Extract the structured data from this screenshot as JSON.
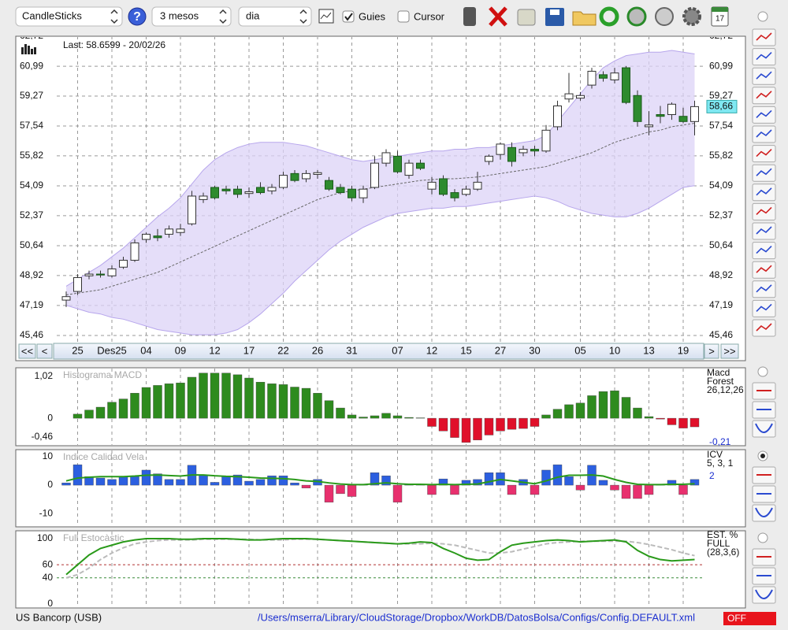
{
  "toolbar": {
    "chart_type": "CandleSticks",
    "help": "?",
    "period": "3 mesos",
    "interval": "dia",
    "guides": "Guies",
    "guides_checked": true,
    "cursor": "Cursor",
    "cursor_checked": false,
    "calendar_day": "17"
  },
  "nav": [
    "<<",
    "<",
    ">",
    ">>"
  ],
  "chart_data": [
    {
      "type": "candlestick",
      "title": "Last: 58.6599 - 20/02/26",
      "categories": [
        null,
        "25",
        null,
        null,
        "Des25",
        null,
        null,
        "04",
        null,
        null,
        "09",
        null,
        null,
        "12",
        null,
        null,
        "17",
        null,
        null,
        "22",
        null,
        null,
        "26",
        null,
        null,
        "31",
        null,
        null,
        null,
        "07",
        null,
        null,
        "12",
        null,
        null,
        "15",
        null,
        null,
        "27",
        null,
        null,
        "30",
        null,
        null,
        null,
        "05",
        null,
        null,
        "10",
        null,
        null,
        "13",
        null,
        null,
        "19",
        null
      ],
      "open": [
        47.5,
        48.0,
        48.9,
        49.0,
        48.9,
        49.4,
        49.8,
        51.0,
        51.2,
        51.3,
        51.4,
        51.9,
        53.3,
        54.0,
        53.9,
        53.9,
        53.65,
        54.0,
        53.8,
        54.0,
        54.8,
        54.5,
        54.75,
        54.4,
        54.0,
        53.9,
        53.4,
        54.0,
        55.4,
        55.8,
        54.7,
        55.4,
        53.9,
        54.5,
        53.7,
        53.6,
        53.9,
        55.5,
        55.9,
        56.3,
        56.0,
        56.2,
        56.1,
        57.5,
        59.1,
        59.15,
        59.9,
        60.5,
        60.2,
        60.9,
        59.3,
        57.5,
        58.2,
        58.2,
        58.1,
        57.8
      ],
      "high": [
        48.0,
        49.0,
        49.2,
        49.2,
        49.5,
        50.0,
        51.0,
        51.4,
        51.6,
        51.8,
        51.9,
        53.8,
        53.7,
        54.1,
        54.1,
        54.1,
        54.0,
        54.3,
        54.2,
        54.9,
        55.0,
        55.0,
        55.0,
        54.6,
        54.2,
        54.1,
        54.1,
        55.8,
        56.2,
        56.1,
        55.6,
        55.6,
        54.6,
        54.7,
        53.9,
        54.1,
        54.9,
        55.9,
        56.6,
        56.6,
        56.4,
        56.4,
        57.6,
        59.0,
        60.6,
        59.5,
        60.9,
        60.7,
        60.9,
        61.0,
        59.6,
        58.4,
        58.7,
        58.9,
        58.6,
        59.0
      ],
      "low": [
        47.1,
        47.8,
        48.7,
        48.8,
        48.8,
        49.3,
        49.7,
        50.8,
        50.9,
        51.1,
        51.2,
        51.8,
        53.1,
        53.3,
        53.6,
        53.4,
        53.4,
        53.6,
        53.6,
        53.9,
        54.3,
        54.3,
        54.5,
        53.8,
        53.6,
        53.2,
        53.1,
        53.9,
        55.2,
        54.8,
        54.5,
        55.0,
        53.6,
        53.5,
        53.2,
        53.5,
        53.8,
        55.3,
        55.6,
        55.2,
        55.8,
        55.8,
        56.0,
        57.3,
        58.9,
        59.0,
        59.7,
        60.1,
        60.0,
        58.8,
        57.5,
        57.0,
        57.7,
        57.9,
        57.7,
        57.0
      ],
      "close": [
        47.7,
        48.8,
        49.0,
        48.95,
        49.3,
        49.8,
        50.8,
        51.3,
        51.1,
        51.6,
        51.6,
        53.5,
        53.5,
        53.4,
        53.8,
        53.6,
        53.75,
        53.7,
        54.0,
        54.7,
        54.4,
        54.8,
        54.85,
        53.9,
        53.7,
        53.4,
        53.9,
        55.4,
        56.0,
        54.9,
        55.4,
        55.1,
        54.3,
        53.6,
        53.4,
        53.9,
        54.3,
        55.8,
        56.5,
        55.5,
        56.2,
        56.1,
        57.3,
        58.7,
        59.4,
        59.3,
        60.7,
        60.3,
        60.6,
        58.9,
        57.8,
        57.6,
        58.1,
        58.8,
        57.8,
        58.66
      ],
      "close_labels": [
        null,
        null,
        null,
        null,
        null,
        null,
        null,
        null,
        null,
        null,
        null,
        null,
        null,
        null,
        null,
        null,
        null,
        null,
        null,
        null,
        null,
        null,
        null,
        null,
        null,
        null,
        null,
        null,
        null,
        null,
        null,
        null,
        null,
        null,
        null,
        null,
        null,
        null,
        null,
        null,
        null,
        null,
        null,
        null,
        null,
        null,
        null,
        null,
        null,
        null,
        null,
        null,
        null,
        null,
        null,
        "58,66"
      ],
      "bands": {
        "upper": [
          48.3,
          48.7,
          49.1,
          49.5,
          50.0,
          50.5,
          51.1,
          51.7,
          52.3,
          52.8,
          53.4,
          54.2,
          55.0,
          55.6,
          56.0,
          56.3,
          56.5,
          56.6,
          56.6,
          56.6,
          56.5,
          56.4,
          56.2,
          56.0,
          55.8,
          55.6,
          55.5,
          55.6,
          55.7,
          55.8,
          55.9,
          56.0,
          56.1,
          56.1,
          56.2,
          56.2,
          56.3,
          56.3,
          56.4,
          56.5,
          56.6,
          56.7,
          57.0,
          57.8,
          58.6,
          59.4,
          60.2,
          60.9,
          61.3,
          61.6,
          61.7,
          61.8,
          61.8,
          61.9,
          61.8,
          61.7
        ],
        "middle": [
          47.8,
          47.9,
          48.0,
          48.1,
          48.3,
          48.5,
          48.7,
          48.9,
          49.1,
          49.4,
          49.7,
          50.0,
          50.3,
          50.6,
          50.9,
          51.2,
          51.5,
          51.8,
          52.1,
          52.4,
          52.7,
          53.0,
          53.3,
          53.5,
          53.7,
          53.8,
          53.9,
          54.0,
          54.1,
          54.2,
          54.3,
          54.4,
          54.45,
          54.5,
          54.5,
          54.55,
          54.6,
          54.7,
          54.8,
          54.9,
          55.0,
          55.1,
          55.2,
          55.4,
          55.6,
          55.8,
          56.0,
          56.3,
          56.6,
          56.8,
          57.0,
          57.2,
          57.3,
          57.5,
          57.6,
          57.7
        ],
        "lower": [
          47.2,
          47.0,
          46.8,
          46.7,
          46.5,
          46.4,
          46.2,
          46.0,
          45.8,
          45.7,
          45.6,
          45.5,
          45.5,
          45.5,
          45.6,
          45.8,
          46.2,
          46.7,
          47.3,
          47.9,
          48.6,
          49.2,
          49.8,
          50.4,
          50.9,
          51.3,
          51.7,
          52.0,
          52.3,
          52.5,
          52.6,
          52.7,
          52.8,
          52.8,
          52.9,
          52.9,
          53.0,
          53.1,
          53.2,
          53.3,
          53.4,
          53.5,
          53.4,
          53.2,
          52.9,
          52.7,
          52.5,
          52.4,
          52.3,
          52.3,
          52.5,
          52.8,
          53.2,
          53.6,
          54.0,
          54.1
        ]
      },
      "ylim": [
        45.46,
        62.72
      ],
      "yticks": [
        {
          "value": 45.46,
          "label": "45,46"
        },
        {
          "value": 47.19,
          "label": "47,19"
        },
        {
          "value": 48.92,
          "label": "48,92"
        },
        {
          "value": 50.64,
          "label": "50,64"
        },
        {
          "value": 52.37,
          "label": "52,37"
        },
        {
          "value": 54.09,
          "label": "54,09"
        },
        {
          "value": 55.82,
          "label": "55,82"
        },
        {
          "value": 57.54,
          "label": "57,54"
        },
        {
          "value": 59.27,
          "label": "59,27"
        },
        {
          "value": 60.99,
          "label": "60,99"
        },
        {
          "value": 62.72,
          "label": "62,72"
        }
      ],
      "grid": true,
      "colors": {
        "up": "#ffffff",
        "down": "#2e8b2e",
        "band": "#dcd3f7",
        "last": "#7fe8f2"
      }
    },
    {
      "type": "bar",
      "title": "Histograma MACD",
      "side_labels": [
        "Macd",
        "Forest",
        "26,12,26"
      ],
      "values": [
        null,
        0.1,
        0.2,
        0.27,
        0.39,
        0.47,
        0.61,
        0.75,
        0.8,
        0.84,
        0.86,
        1.0,
        1.1,
        1.1,
        1.1,
        1.06,
        0.98,
        0.88,
        0.84,
        0.82,
        0.76,
        0.73,
        0.61,
        0.43,
        0.25,
        0.08,
        0.03,
        0.06,
        0.12,
        0.06,
        0.02,
        0.01,
        -0.2,
        -0.31,
        -0.47,
        -0.59,
        -0.53,
        -0.41,
        -0.31,
        -0.27,
        -0.25,
        -0.2,
        0.08,
        0.22,
        0.33,
        0.37,
        0.55,
        0.65,
        0.67,
        0.51,
        0.25,
        0.04,
        -0.02,
        -0.16,
        -0.24,
        -0.21
      ],
      "value_labels": [
        null,
        null,
        null,
        null,
        null,
        null,
        null,
        null,
        null,
        null,
        null,
        null,
        null,
        null,
        null,
        null,
        null,
        null,
        null,
        null,
        null,
        null,
        null,
        null,
        null,
        null,
        null,
        null,
        null,
        null,
        null,
        null,
        null,
        null,
        null,
        null,
        null,
        null,
        null,
        null,
        null,
        null,
        null,
        null,
        null,
        null,
        null,
        null,
        null,
        null,
        null,
        null,
        null,
        null,
        null,
        "-0,21"
      ],
      "ylim": [
        -0.67,
        1.23
      ],
      "yticks": [
        {
          "value": -0.46,
          "label": "-0,46"
        },
        0,
        {
          "value": 1.02,
          "label": "1,02"
        }
      ],
      "colors": {
        "positive": "#2e8b1e",
        "negative": "#e0102a"
      }
    },
    {
      "type": "bar",
      "title": "Indice Calidad Vela",
      "side_labels": [
        "ICV",
        "5, 3, 1"
      ],
      "values": [
        0.8,
        7.2,
        3,
        2.5,
        2,
        3,
        3,
        5.3,
        4,
        2,
        2,
        7,
        3.6,
        1,
        3.3,
        3.6,
        1.4,
        2,
        3.3,
        3.3,
        0.8,
        -1,
        2,
        -6,
        -3,
        -4,
        0.3,
        4.4,
        3.3,
        -6,
        0.3,
        0.3,
        -3.3,
        2.2,
        -3.3,
        1.7,
        2,
        4.4,
        4.4,
        -3.3,
        2,
        -3.3,
        5.3,
        7.2,
        3,
        -1.7,
        7,
        1.7,
        -1.7,
        -4.7,
        -4.7,
        -3.3,
        0.2,
        1.7,
        -3.3,
        2
      ],
      "line": {
        "color": "#2a9a1a",
        "values": [
          1.5,
          2.5,
          2.8,
          3,
          3,
          3,
          3.2,
          3.5,
          3.6,
          3.4,
          3.2,
          3.6,
          3.6,
          3.3,
          3.1,
          3,
          2.8,
          2.5,
          2.4,
          2.3,
          2.0,
          1.5,
          1.3,
          0.8,
          0.4,
          0.2,
          0.2,
          0.5,
          0.8,
          0.5,
          0.3,
          0.3,
          0.2,
          0.3,
          0.2,
          0.3,
          0.4,
          1.2,
          2.0,
          1.5,
          1.0,
          0.5,
          1.5,
          2.8,
          3.5,
          3.5,
          3.6,
          3.2,
          2.0,
          1.0,
          0.3,
          0.2,
          0.2,
          0.3,
          0.3,
          0.5
        ]
      },
      "ylim": [
        -14.4,
        12.5
      ],
      "yticks": [
        -10,
        0,
        10
      ],
      "colors": {
        "positive": "#2c5fe0",
        "negative": "#e8306e"
      }
    },
    {
      "type": "line",
      "title": "Full Estocàstic",
      "side_labels": [
        "EST. %",
        "FULL",
        "(28,3,6)"
      ],
      "series": [
        {
          "color": "#2a9a1a",
          "dash": false,
          "values": [
            45,
            60,
            75,
            85,
            90,
            95,
            98,
            100,
            100,
            100,
            99,
            99,
            100,
            100,
            100,
            99,
            98,
            98,
            99,
            100,
            100,
            100,
            99,
            98,
            97,
            96,
            95,
            94,
            93,
            92,
            93,
            95,
            94,
            85,
            78,
            70,
            67,
            68,
            80,
            90,
            93,
            95,
            97,
            98,
            97,
            95,
            96,
            97,
            98,
            95,
            82,
            73,
            68,
            66,
            67,
            68
          ]
        },
        {
          "color": "#bbbbbb",
          "dash": true,
          "values": [
            40,
            45,
            55,
            68,
            78,
            86,
            92,
            95,
            97,
            98,
            98,
            98,
            99,
            99,
            99,
            99,
            99,
            98,
            98,
            98,
            99,
            99,
            99,
            98,
            97,
            96,
            95,
            94,
            93,
            92,
            92,
            92,
            93,
            92,
            90,
            86,
            82,
            78,
            78,
            80,
            84,
            88,
            92,
            94,
            95,
            96,
            96,
            96,
            96,
            96,
            94,
            91,
            87,
            83,
            78,
            74
          ]
        }
      ],
      "ylim": [
        -6,
        112
      ],
      "yticks": [
        0,
        40,
        60,
        100
      ],
      "tick_lines": [
        null,
        "#3a8a3a",
        "#b03030",
        null
      ]
    }
  ],
  "status": {
    "symbol": "US Bancorp (USB)",
    "config_path": "/Users/mserra/Library/CloudStorage/Dropbox/WorkDB/DatosBolsa/Configs/Config.DEFAULT.xml",
    "mode": "OFF"
  }
}
